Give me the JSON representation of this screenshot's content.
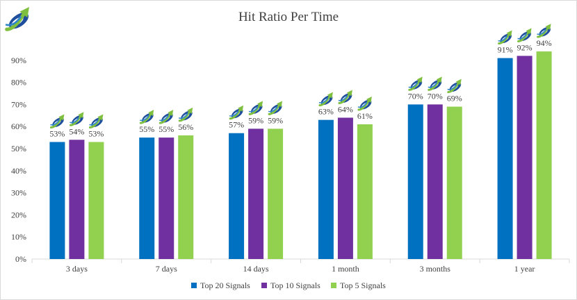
{
  "chart_data": {
    "type": "bar",
    "title": "Hit Ratio Per Time",
    "xlabel": "",
    "ylabel": "",
    "categories": [
      "3 days",
      "7 days",
      "14 days",
      "1 month",
      "3 months",
      "1 year"
    ],
    "series": [
      {
        "name": "Top 20 Signals",
        "color": "#0070c0",
        "values": [
          53,
          55,
          57,
          63,
          70,
          91
        ]
      },
      {
        "name": "Top 10 Signals",
        "color": "#7030a0",
        "values": [
          54,
          55,
          59,
          64,
          70,
          92
        ]
      },
      {
        "name": "Top 5 Signals",
        "color": "#92d050",
        "values": [
          53,
          56,
          59,
          61,
          69,
          94
        ]
      }
    ],
    "ylim": [
      0,
      100
    ],
    "ytick_values": [
      0,
      10,
      20,
      30,
      40,
      50,
      60,
      70,
      80,
      90
    ],
    "ytick_labels": [
      "0%",
      "10%",
      "20%",
      "30%",
      "40%",
      "50%",
      "60%",
      "70%",
      "80%",
      "90%"
    ],
    "value_suffix": "%",
    "data_labels": true,
    "data_label_icon": "rising-arrow-logo-icon",
    "grid": false,
    "legend_position": "bottom",
    "logo_icon": "rising-arrow-logo-icon"
  }
}
